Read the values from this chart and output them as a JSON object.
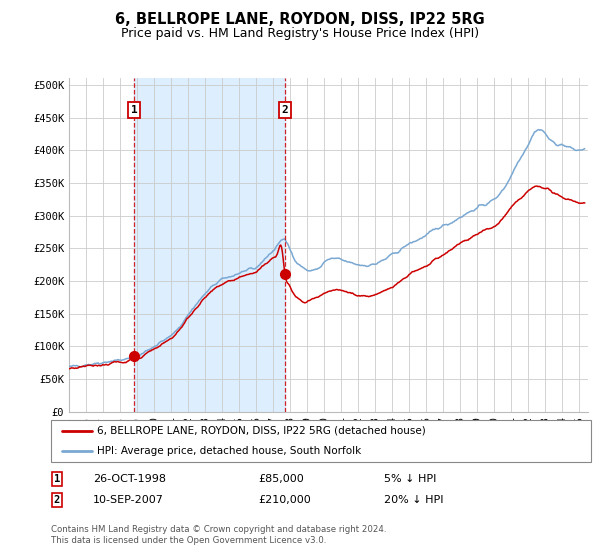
{
  "title": "6, BELLROPE LANE, ROYDON, DISS, IP22 5RG",
  "subtitle": "Price paid vs. HM Land Registry's House Price Index (HPI)",
  "ylabel_ticks": [
    "£0",
    "£50K",
    "£100K",
    "£150K",
    "£200K",
    "£250K",
    "£300K",
    "£350K",
    "£400K",
    "£450K",
    "£500K"
  ],
  "ytick_values": [
    0,
    50000,
    100000,
    150000,
    200000,
    250000,
    300000,
    350000,
    400000,
    450000,
    500000
  ],
  "xlim_start": 1995.0,
  "xlim_end": 2025.5,
  "ylim": [
    0,
    510000
  ],
  "sale1_x": 1998.82,
  "sale1_y": 85000,
  "sale1_label": "1",
  "sale1_date": "26-OCT-1998",
  "sale1_price": "£85,000",
  "sale1_hpi": "5% ↓ HPI",
  "sale2_x": 2007.69,
  "sale2_y": 210000,
  "sale2_label": "2",
  "sale2_date": "10-SEP-2007",
  "sale2_price": "£210,000",
  "sale2_hpi": "20% ↓ HPI",
  "legend_line1": "6, BELLROPE LANE, ROYDON, DISS, IP22 5RG (detached house)",
  "legend_line2": "HPI: Average price, detached house, South Norfolk",
  "footer": "Contains HM Land Registry data © Crown copyright and database right 2024.\nThis data is licensed under the Open Government Licence v3.0.",
  "red_color": "#cc0000",
  "blue_color": "#7aa8d2",
  "bg_highlight": "#ddeeff",
  "title_fontsize": 10.5,
  "subtitle_fontsize": 9,
  "tick_fontsize": 7.5,
  "hpi_anchors_x": [
    1995.0,
    1995.5,
    1996.0,
    1996.5,
    1997.0,
    1997.5,
    1998.0,
    1998.5,
    1999.0,
    1999.5,
    2000.0,
    2000.5,
    2001.0,
    2001.5,
    2002.0,
    2002.5,
    2003.0,
    2003.5,
    2004.0,
    2004.5,
    2005.0,
    2005.5,
    2006.0,
    2006.5,
    2007.0,
    2007.25,
    2007.5,
    2007.69,
    2007.9,
    2008.2,
    2008.5,
    2008.9,
    2009.2,
    2009.5,
    2009.8,
    2010.0,
    2010.3,
    2010.6,
    2011.0,
    2011.5,
    2012.0,
    2012.5,
    2013.0,
    2013.5,
    2014.0,
    2014.5,
    2015.0,
    2015.5,
    2016.0,
    2016.5,
    2017.0,
    2017.5,
    2018.0,
    2018.5,
    2019.0,
    2019.5,
    2020.0,
    2020.5,
    2021.0,
    2021.3,
    2021.6,
    2022.0,
    2022.3,
    2022.6,
    2023.0,
    2023.3,
    2023.6,
    2024.0,
    2024.5,
    2025.0
  ],
  "hpi_anchors_y": [
    68000,
    70000,
    72000,
    73500,
    75500,
    77500,
    79000,
    80500,
    84000,
    92000,
    100000,
    108000,
    116000,
    130000,
    148000,
    165000,
    180000,
    193000,
    202000,
    207000,
    212000,
    216000,
    220000,
    234000,
    246000,
    255000,
    263000,
    262000,
    253000,
    237000,
    226000,
    218000,
    215000,
    218000,
    222000,
    228000,
    233000,
    234000,
    232000,
    228000,
    225000,
    224000,
    226000,
    232000,
    240000,
    248000,
    257000,
    263000,
    270000,
    278000,
    285000,
    290000,
    298000,
    305000,
    312000,
    318000,
    325000,
    340000,
    362000,
    378000,
    392000,
    410000,
    425000,
    432000,
    425000,
    415000,
    410000,
    408000,
    403000,
    400000
  ],
  "red_anchors_x": [
    1995.0,
    1995.5,
    1996.0,
    1996.5,
    1997.0,
    1997.5,
    1998.0,
    1998.5,
    1998.82,
    1999.0,
    1999.5,
    2000.0,
    2000.5,
    2001.0,
    2001.5,
    2002.0,
    2002.5,
    2003.0,
    2003.5,
    2004.0,
    2004.5,
    2005.0,
    2005.5,
    2006.0,
    2006.5,
    2007.0,
    2007.25,
    2007.5,
    2007.69,
    2007.9,
    2008.2,
    2008.5,
    2008.9,
    2009.2,
    2009.5,
    2009.8,
    2010.0,
    2010.5,
    2011.0,
    2011.5,
    2012.0,
    2012.5,
    2013.0,
    2013.5,
    2014.0,
    2014.5,
    2015.0,
    2015.5,
    2016.0,
    2016.5,
    2017.0,
    2017.5,
    2018.0,
    2018.5,
    2019.0,
    2019.5,
    2020.0,
    2020.5,
    2021.0,
    2021.5,
    2022.0,
    2022.5,
    2023.0,
    2023.3,
    2023.6,
    2024.0,
    2024.5,
    2025.0
  ],
  "red_anchors_y": [
    65000,
    67000,
    69000,
    70500,
    72000,
    74000,
    76000,
    78000,
    85000,
    82000,
    88000,
    96000,
    104000,
    112000,
    126000,
    143000,
    160000,
    174000,
    186000,
    195000,
    200000,
    205000,
    210000,
    213000,
    225000,
    235000,
    242000,
    250000,
    210000,
    195000,
    180000,
    172000,
    167000,
    170000,
    173000,
    176000,
    180000,
    185000,
    185000,
    182000,
    178000,
    177000,
    178000,
    184000,
    192000,
    200000,
    210000,
    216000,
    222000,
    232000,
    240000,
    248000,
    258000,
    265000,
    272000,
    278000,
    283000,
    296000,
    312000,
    325000,
    337000,
    345000,
    342000,
    338000,
    332000,
    328000,
    324000,
    320000
  ]
}
